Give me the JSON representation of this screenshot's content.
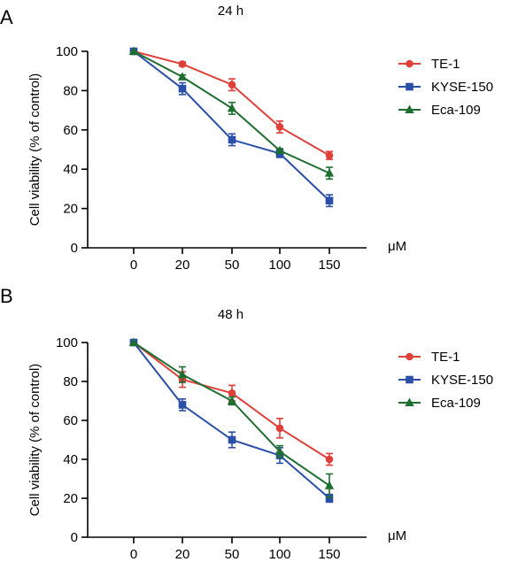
{
  "chart_data": [
    {
      "type": "line",
      "panel_label": "A",
      "title": "24 h",
      "ylabel": "Cell viability (% of control)",
      "xunit": "μM",
      "categories": [
        "0",
        "20",
        "50",
        "100",
        "150"
      ],
      "ylim": [
        0,
        100
      ],
      "yticks": [
        "0",
        "20",
        "40",
        "60",
        "80",
        "100"
      ],
      "legend_position": "right",
      "series": [
        {
          "name": "TE-1",
          "color": "#e0403a",
          "marker": "circle",
          "values": [
            100,
            93.5,
            83,
            61.5,
            47
          ],
          "errors": [
            0,
            1,
            3,
            3,
            2
          ]
        },
        {
          "name": "KYSE-150",
          "color": "#2a4fa8",
          "marker": "square",
          "values": [
            100,
            81,
            55,
            48,
            24
          ],
          "errors": [
            0,
            3,
            3,
            2,
            3
          ]
        },
        {
          "name": "Eca-109",
          "color": "#1e6e30",
          "marker": "triangle",
          "values": [
            100,
            87,
            71,
            49.5,
            38
          ],
          "errors": [
            0,
            1,
            3,
            1,
            3
          ]
        }
      ]
    },
    {
      "type": "line",
      "panel_label": "B",
      "title": "48 h",
      "ylabel": "Cell viability (% of control)",
      "xunit": "μM",
      "categories": [
        "0",
        "20",
        "50",
        "100",
        "150"
      ],
      "ylim": [
        0,
        100
      ],
      "yticks": [
        "0",
        "20",
        "40",
        "60",
        "80",
        "100"
      ],
      "legend_position": "right",
      "series": [
        {
          "name": "TE-1",
          "color": "#e0403a",
          "marker": "circle",
          "values": [
            100,
            81,
            74,
            56,
            40
          ],
          "errors": [
            0,
            4,
            4,
            5,
            3
          ]
        },
        {
          "name": "KYSE-150",
          "color": "#2a4fa8",
          "marker": "square",
          "values": [
            100,
            68,
            50,
            42,
            20
          ],
          "errors": [
            0,
            3,
            4,
            4,
            2
          ]
        },
        {
          "name": "Eca-109",
          "color": "#1e6e30",
          "marker": "triangle",
          "values": [
            100,
            83.5,
            70,
            44,
            26.5
          ],
          "errors": [
            0,
            4,
            2,
            3,
            6
          ]
        }
      ]
    }
  ]
}
